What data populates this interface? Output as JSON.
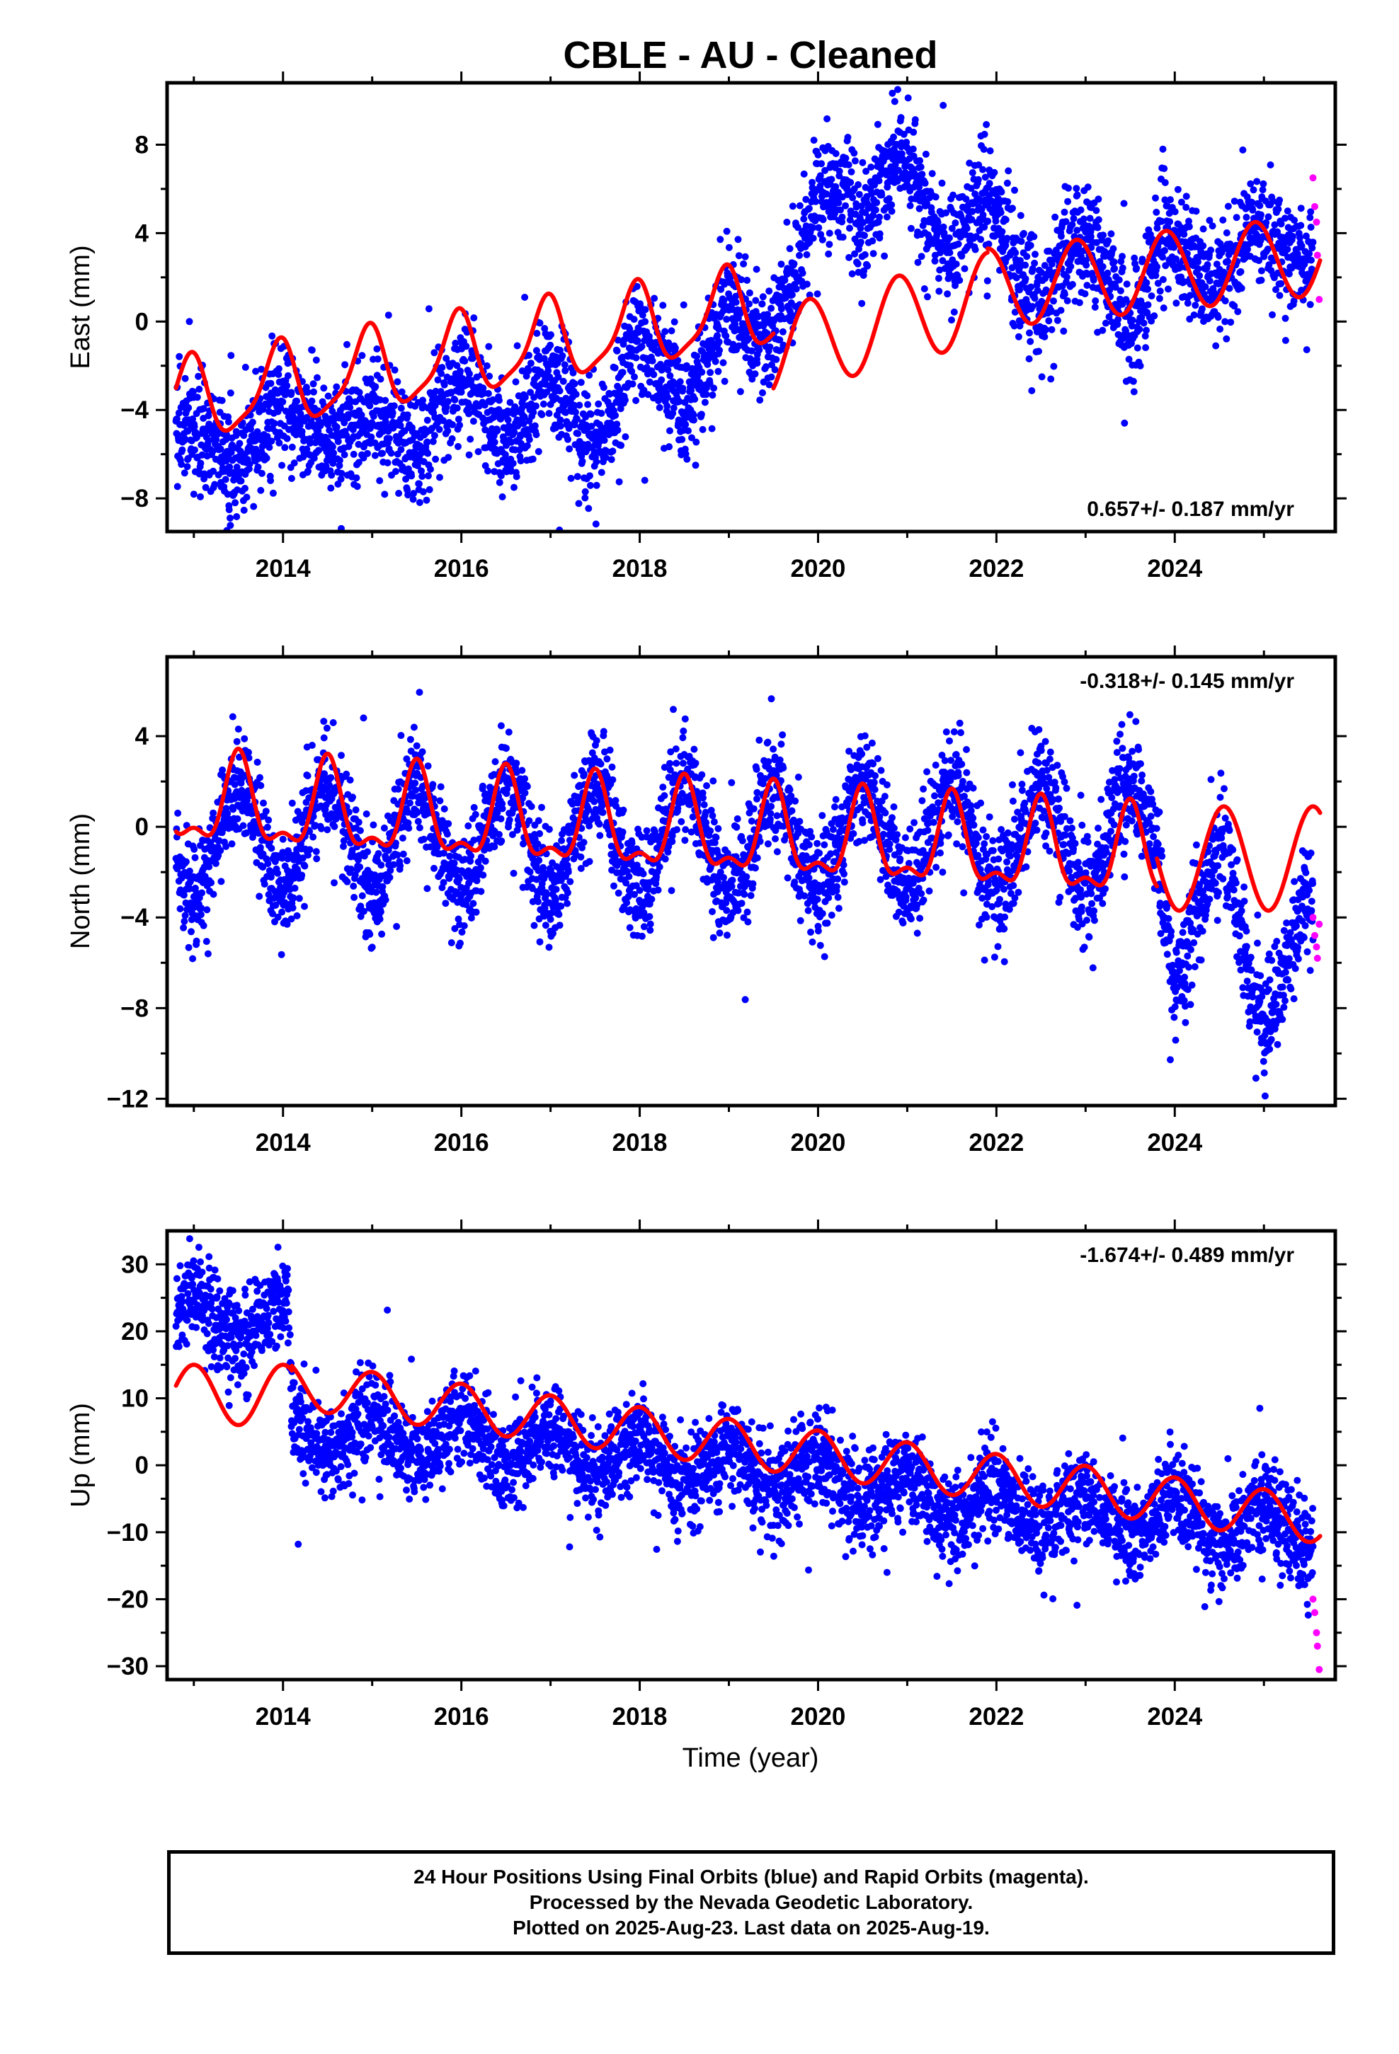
{
  "title": "CBLE  - AU - Cleaned",
  "xlabel": "Time (year)",
  "colors": {
    "final_orbits": "#0000ff",
    "rapid_orbits": "#ff00ff",
    "model": "#ff0000"
  },
  "caption": {
    "line1": "24 Hour Positions Using Final Orbits (blue) and Rapid Orbits (magenta).",
    "line2": "Processed by the Nevada Geodetic Laboratory.",
    "line3": "Plotted on 2025-Aug-23. Last data on 2025-Aug-19."
  },
  "chart_data": [
    {
      "type": "scatter",
      "ylabel": "East (mm)",
      "xlim": [
        2012.7,
        2025.8
      ],
      "ylim": [
        -9.5,
        10.8
      ],
      "xticks": [
        2014,
        2016,
        2018,
        2020,
        2022,
        2024
      ],
      "yticks": [
        -8,
        -4,
        0,
        4,
        8
      ],
      "rate": "0.657+/- 0.187 mm/yr",
      "rate_position": "bottom-right",
      "grid": false,
      "data_range": {
        "start": 2012.8,
        "end": 2025.55,
        "rapid_start": 2025.52,
        "rapid_end": 2025.63
      },
      "series": [
        {
          "name": "",
          "kind": "final-orbits",
          "color": "#0000ff",
          "trend_points": [
            [
              2012.8,
              -4.5
            ],
            [
              2013.5,
              -6.5
            ],
            [
              2014.0,
              -3.5
            ],
            [
              2014.5,
              -5.5
            ],
            [
              2015.0,
              -4.0
            ],
            [
              2015.5,
              -6.0
            ],
            [
              2016.0,
              -2.5
            ],
            [
              2016.5,
              -5.5
            ],
            [
              2017.0,
              -2.0
            ],
            [
              2017.5,
              -6.0
            ],
            [
              2018.0,
              -0.5
            ],
            [
              2018.5,
              -4.0
            ],
            [
              2019.0,
              1.0
            ],
            [
              2019.4,
              -1.5
            ],
            [
              2019.8,
              3.0
            ],
            [
              2020.0,
              6.0
            ],
            [
              2020.3,
              6.0
            ],
            [
              2020.5,
              4.0
            ],
            [
              2020.9,
              8.0
            ],
            [
              2021.2,
              5.0
            ],
            [
              2021.5,
              3.0
            ],
            [
              2021.9,
              6.0
            ],
            [
              2022.2,
              3.0
            ],
            [
              2022.5,
              0.5
            ],
            [
              2022.9,
              4.0
            ],
            [
              2023.2,
              2.5
            ],
            [
              2023.5,
              -0.5
            ],
            [
              2023.9,
              4.5
            ],
            [
              2024.2,
              2.5
            ],
            [
              2024.5,
              1.5
            ],
            [
              2024.9,
              4.5
            ],
            [
              2025.2,
              3.0
            ],
            [
              2025.55,
              3.0
            ]
          ],
          "scatter_spread": 1.3
        },
        {
          "name": "",
          "kind": "rapid-orbits",
          "color": "#ff00ff",
          "points": [
            [
              2025.55,
              6.5
            ],
            [
              2025.57,
              5.2
            ],
            [
              2025.59,
              4.5
            ],
            [
              2025.6,
              3.0
            ],
            [
              2025.62,
              1.0
            ]
          ]
        },
        {
          "name": "",
          "kind": "model",
          "color": "#ff0000",
          "segments": [
            {
              "from": 2012.8,
              "to": 2019.5,
              "offset": -3.7,
              "rate": 0.66,
              "epoch": 2012.8,
              "annual_amp": 1.8,
              "annual_peak": 2012.95,
              "semi_amp": 0.45,
              "semi_peak": 2013.0
            },
            {
              "from": 2019.5,
              "to": 2021.9,
              "offset": -1.4,
              "rate": 1.05,
              "epoch": 2019.5,
              "annual_amp": 2.0,
              "annual_peak": 2019.9
            },
            {
              "from": 2021.9,
              "to": 2025.63,
              "offset": 1.5,
              "rate": 0.4,
              "epoch": 2021.9,
              "annual_amp": 1.8,
              "annual_peak": 2021.9
            }
          ]
        }
      ]
    },
    {
      "type": "scatter",
      "ylabel": "North (mm)",
      "xlim": [
        2012.7,
        2025.8
      ],
      "ylim": [
        -12.3,
        7.5
      ],
      "xticks": [
        2014,
        2016,
        2018,
        2020,
        2022,
        2024
      ],
      "yticks": [
        -12,
        -8,
        -4,
        0,
        4
      ],
      "rate": "-0.318+/- 0.145 mm/yr",
      "rate_position": "top-right",
      "grid": false,
      "data_range": {
        "start": 2012.8,
        "end": 2025.55,
        "rapid_start": 2025.52,
        "rapid_end": 2025.63
      },
      "series": [
        {
          "name": "",
          "kind": "final-orbits",
          "color": "#0000ff",
          "trend_points": [
            [
              2012.8,
              -0.5
            ],
            [
              2023.8,
              -0.5
            ],
            [
              2024.0,
              -4.5
            ],
            [
              2024.5,
              -3.0
            ],
            [
              2025.0,
              -6.5
            ],
            [
              2025.55,
              -5.5
            ]
          ],
          "seasonal_amp": 2.3,
          "seasonal_peak": 2013.5,
          "scatter_spread": 1.2
        },
        {
          "name": "",
          "kind": "rapid-orbits",
          "color": "#ff00ff",
          "points": [
            [
              2025.55,
              -4.0
            ],
            [
              2025.57,
              -4.8
            ],
            [
              2025.59,
              -5.3
            ],
            [
              2025.6,
              -5.8
            ],
            [
              2025.62,
              -4.3
            ]
          ]
        },
        {
          "name": "",
          "kind": "model",
          "color": "#ff0000",
          "segments": [
            {
              "from": 2012.8,
              "to": 2023.8,
              "offset": 1.0,
              "rate": -0.22,
              "epoch": 2012.8,
              "annual_amp": 1.8,
              "annual_peak": 2013.5,
              "semi_amp": 0.8,
              "semi_peak": 2013.5
            },
            {
              "from": 2023.8,
              "to": 2025.63,
              "offset": -1.4,
              "rate": 0.0,
              "epoch": 2023.8,
              "annual_amp": 2.3,
              "annual_peak": 2024.55
            }
          ]
        }
      ]
    },
    {
      "type": "scatter",
      "ylabel": "Up (mm)",
      "xlim": [
        2012.7,
        2025.8
      ],
      "ylim": [
        -32,
        35
      ],
      "xticks": [
        2014,
        2016,
        2018,
        2020,
        2022,
        2024
      ],
      "yticks": [
        -30,
        -20,
        -10,
        0,
        10,
        20,
        30
      ],
      "rate": "-1.674+/- 0.489 mm/yr",
      "rate_position": "top-right",
      "grid": false,
      "data_range": {
        "start": 2012.8,
        "end": 2025.55,
        "rapid_start": 2025.52,
        "rapid_end": 2025.63
      },
      "series": [
        {
          "name": "",
          "kind": "final-orbits",
          "color": "#0000ff",
          "trend_points": [
            [
              2012.8,
              22.0
            ],
            [
              2014.05,
              22.0
            ],
            [
              2014.1,
              5.0
            ],
            [
              2016.0,
              4.0
            ],
            [
              2018.0,
              1.0
            ],
            [
              2020.0,
              -2.0
            ],
            [
              2022.0,
              -6.0
            ],
            [
              2024.0,
              -8.0
            ],
            [
              2025.55,
              -10.0
            ]
          ],
          "seasonal_amp": 3.0,
          "seasonal_peak": 2015.0,
          "scatter_spread": 3.5
        },
        {
          "name": "",
          "kind": "rapid-orbits",
          "color": "#ff00ff",
          "points": [
            [
              2025.55,
              -20.0
            ],
            [
              2025.57,
              -22.0
            ],
            [
              2025.59,
              -25.0
            ],
            [
              2025.6,
              -27.0
            ],
            [
              2025.62,
              -30.5
            ]
          ]
        },
        {
          "name": "",
          "kind": "model",
          "color": "#ff0000",
          "segments": [
            {
              "from": 2012.8,
              "to": 2014.1,
              "offset": 10.5,
              "rate": 0.0,
              "epoch": 2012.8,
              "annual_amp": 4.5,
              "annual_peak": 2013.0
            },
            {
              "from": 2014.1,
              "to": 2025.63,
              "offset": 12.0,
              "rate": -1.75,
              "epoch": 2014.1,
              "annual_amp": 3.5,
              "annual_peak": 2015.0
            }
          ]
        }
      ]
    }
  ]
}
